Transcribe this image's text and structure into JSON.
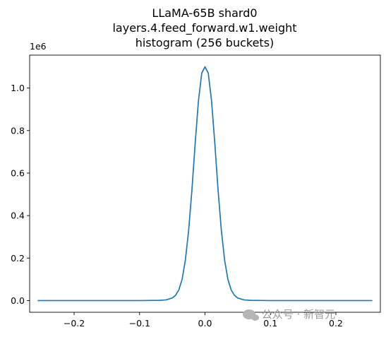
{
  "chart_data": {
    "type": "line",
    "title_lines": [
      "LLaMA-65B shard0",
      "layers.4.feed_forward.w1.weight",
      "histogram (256 buckets)"
    ],
    "xlabel": "",
    "ylabel": "",
    "y_offset_label": "1e6",
    "xlim": [
      -0.268,
      0.268
    ],
    "ylim": [
      -0.055,
      1.155
    ],
    "x_ticks": [
      -0.2,
      -0.1,
      0.0,
      0.1,
      0.2
    ],
    "x_tick_labels": [
      "−0.2",
      "−0.1",
      "0.0",
      "0.1",
      "0.2"
    ],
    "y_ticks": [
      0.0,
      0.2,
      0.4,
      0.6,
      0.8,
      1.0
    ],
    "y_tick_labels": [
      "0.0",
      "0.2",
      "0.4",
      "0.6",
      "0.8",
      "1.0"
    ],
    "grid": false,
    "series": [
      {
        "color": "#1f77b4",
        "x": [
          -0.255,
          -0.2,
          -0.15,
          -0.1,
          -0.07,
          -0.06,
          -0.05,
          -0.045,
          -0.04,
          -0.035,
          -0.03,
          -0.025,
          -0.02,
          -0.015,
          -0.01,
          -0.005,
          0.0,
          0.005,
          0.01,
          0.015,
          0.02,
          0.025,
          0.03,
          0.035,
          0.04,
          0.045,
          0.05,
          0.06,
          0.07,
          0.1,
          0.15,
          0.2,
          0.255
        ],
        "y": [
          0.0,
          0.0,
          0.0,
          0.0,
          0.001,
          0.003,
          0.012,
          0.025,
          0.05,
          0.1,
          0.19,
          0.33,
          0.52,
          0.74,
          0.94,
          1.07,
          1.1,
          1.07,
          0.94,
          0.74,
          0.52,
          0.33,
          0.19,
          0.1,
          0.05,
          0.025,
          0.012,
          0.003,
          0.001,
          0.0,
          0.0,
          0.0,
          0.0
        ]
      }
    ]
  },
  "watermark": {
    "icon": "wechat-icon",
    "text": "公众号 · 新智元"
  }
}
